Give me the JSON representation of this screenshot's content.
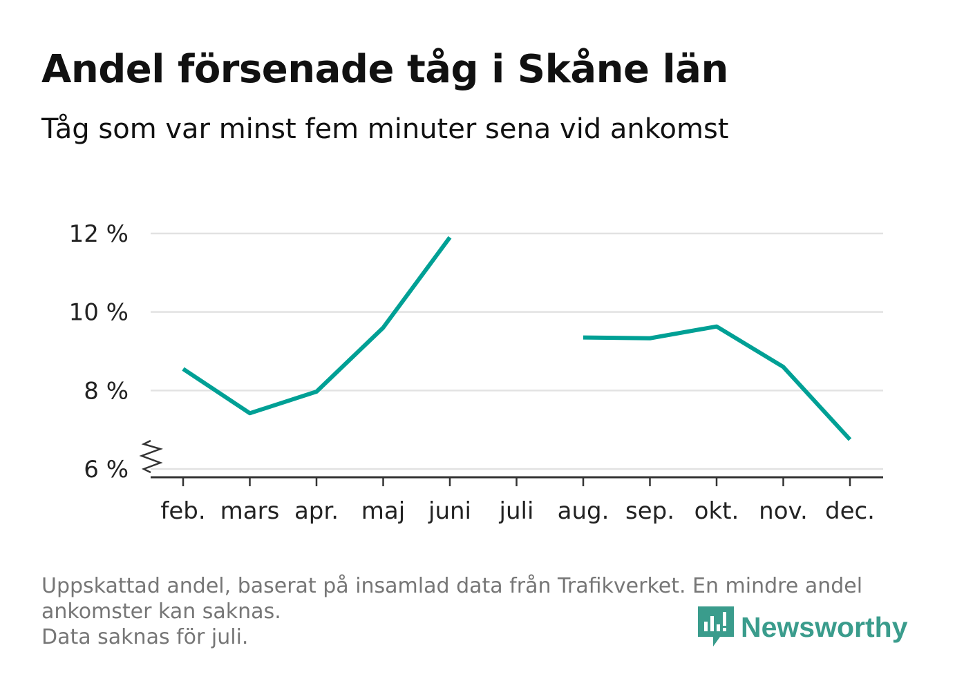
{
  "title": "Andel försenade tåg i Skåne län",
  "subtitle": "Tåg som var minst fem minuter sena vid ankomst",
  "notes": [
    "Uppskattad andel, baserat på insamlad data från Trafikverket. En mindre andel ankomster kan saknas.",
    "Data saknas för juli."
  ],
  "brand": {
    "name": "Newsworthy",
    "color": "#3a9c8c"
  },
  "colors": {
    "line": "#00a095",
    "grid": "#e2e2e2",
    "axis": "#333333",
    "tick_text": "#222222"
  },
  "chart_data": {
    "type": "line",
    "categories": [
      "feb.",
      "mars",
      "apr.",
      "maj",
      "juni",
      "juli",
      "aug.",
      "sep.",
      "okt.",
      "nov.",
      "dec."
    ],
    "series": [
      {
        "values": [
          8.55,
          7.42,
          7.97,
          9.6,
          11.9,
          null,
          9.35,
          9.33,
          9.63,
          8.6,
          6.75
        ]
      }
    ],
    "yticks": [
      6,
      8,
      10,
      12
    ],
    "ytick_labels": [
      "6 %",
      "8 %",
      "10 %",
      "12 %"
    ],
    "ylim": [
      6,
      12
    ],
    "y_axis_break": true,
    "grid": "horizontal"
  }
}
